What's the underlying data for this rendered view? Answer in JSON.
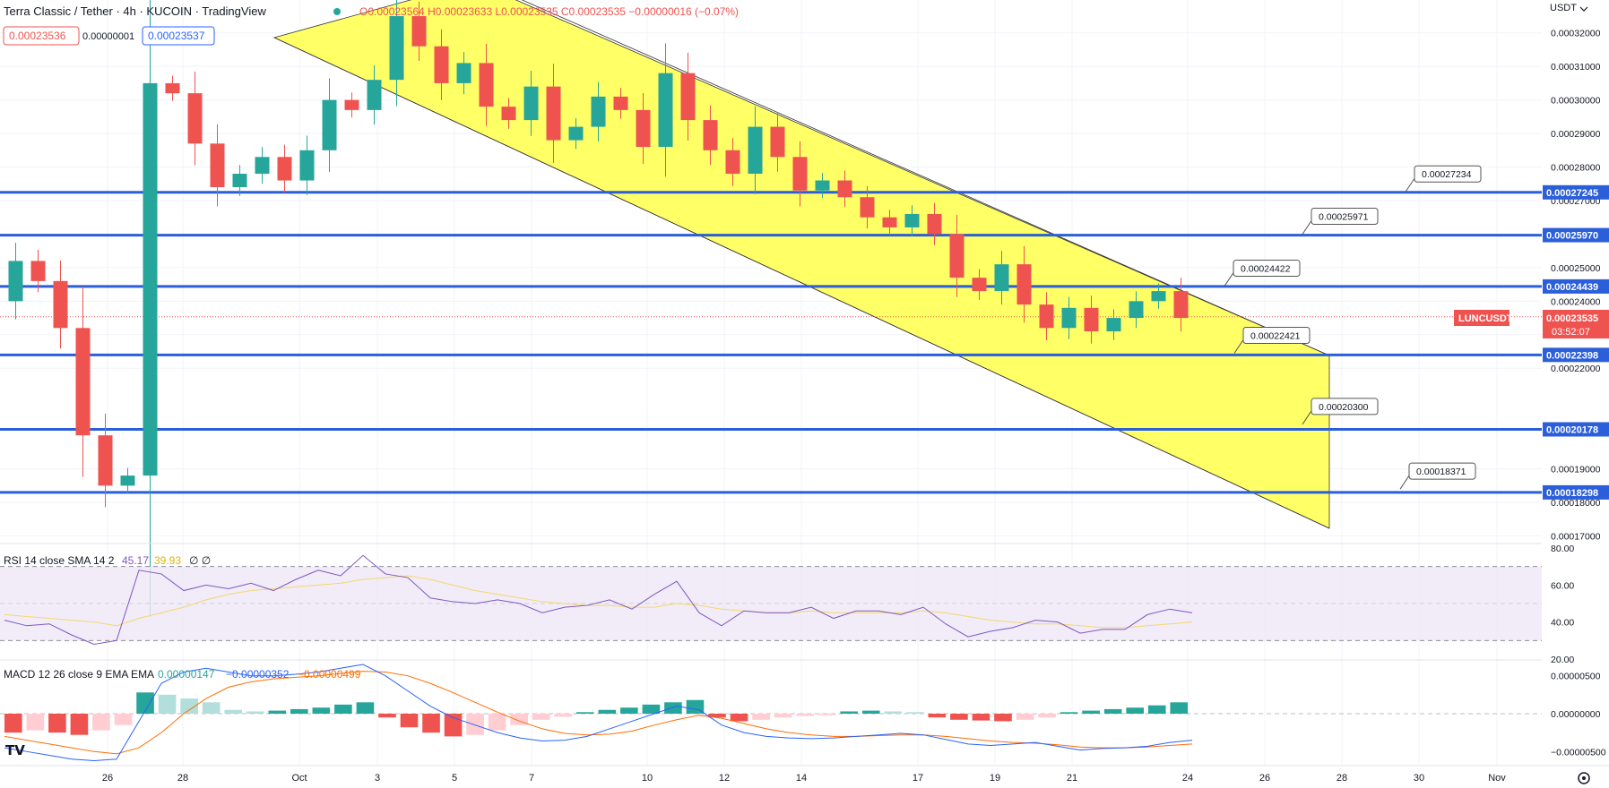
{
  "header": {
    "title": "Terra Classic / Tether · 4h · KUCOIN · TradingView",
    "ohlc": "O0.00023564 H0.00023633 L0.00023535 C0.00023535 −0.00000016 (−0.07%)",
    "bid": "0.00023536",
    "spread": "0.00000001",
    "ask": "0.00023537",
    "currency": "USDT"
  },
  "price_badge": {
    "symbol": "LUNCUSDT",
    "price": "0.00023535",
    "countdown": "03:52:07"
  },
  "indicators": {
    "rsi": {
      "label": "RSI 14 close SMA 14 2",
      "value": "45.17",
      "sma": "39.93",
      "extra": "∅ ∅"
    },
    "macd": {
      "label": "MACD 12 26 close 9 EMA EMA",
      "hist": "0.00000147",
      "macd": "−0.00000352",
      "signal": "−0.00000499"
    }
  },
  "colors": {
    "up": "#26a69a",
    "down": "#ef5350",
    "level": "#2b5fd9",
    "channel": "#ffff66",
    "rsi": "#7e57c2",
    "rsi_sma": "#f5d76e",
    "macd": "#2962ff",
    "signal": "#ff6d00"
  },
  "chart_data": {
    "type": "candlestick",
    "price_axis_labels": [
      "0.00032000",
      "0.00031000",
      "0.00030000",
      "0.00029000",
      "0.00028000",
      "0.00027000",
      "0.00025000",
      "0.00024000",
      "0.00023000",
      "0.00022000",
      "0.00019000",
      "0.00018000",
      "0.00017000"
    ],
    "price_ylim": [
      0.000168,
      0.000325
    ],
    "x_ticks": [
      "26",
      "28",
      "Oct",
      "3",
      "5",
      "7",
      "10",
      "12",
      "14",
      "17",
      "19",
      "21",
      "24",
      "26",
      "28",
      "30",
      "Nov"
    ],
    "horizontal_levels": [
      "0.00027245",
      "0.00025970",
      "0.00024439",
      "0.00022398",
      "0.00020178",
      "0.00018298"
    ],
    "callouts": [
      "0.00027234",
      "0.00025971",
      "0.00024422",
      "0.00022421",
      "0.00020300",
      "0.00018371"
    ],
    "close_path": [
      0.00024,
      0.000252,
      0.000246,
      0.000232,
      0.0002,
      0.000185,
      0.000188,
      0.000305,
      0.000302,
      0.000287,
      0.000274,
      0.000278,
      0.000283,
      0.000276,
      0.000285,
      0.0003,
      0.000297,
      0.000306,
      0.000325,
      0.000316,
      0.000305,
      0.000311,
      0.000298,
      0.000294,
      0.000304,
      0.000288,
      0.000292,
      0.000301,
      0.000297,
      0.000286,
      0.000308,
      0.000294,
      0.000285,
      0.000278,
      0.000292,
      0.000283,
      0.000273,
      0.000276,
      0.000271,
      0.000265,
      0.000262,
      0.000266,
      0.00026,
      0.000247,
      0.000243,
      0.000251,
      0.000239,
      0.000232,
      0.000238,
      0.000231,
      0.000235,
      0.00024,
      0.000243,
      0.000235
    ],
    "rsi_axis_labels": [
      "80.00",
      "60.00",
      "40.00",
      "20.00"
    ],
    "rsi_ylim": [
      20,
      80
    ],
    "rsi_values": [
      41,
      38,
      39,
      33,
      28,
      30,
      68,
      66,
      57,
      60,
      58,
      61,
      57,
      63,
      68,
      65,
      76,
      66,
      64,
      53,
      51,
      50,
      52,
      50,
      45,
      48,
      49,
      52,
      47,
      55,
      62,
      45,
      38,
      46,
      45,
      45,
      48,
      42,
      46,
      46,
      44,
      48,
      39,
      32,
      35,
      37,
      41,
      40,
      34,
      36,
      36,
      44,
      47,
      45
    ],
    "rsi_sma_values": [
      44,
      43,
      42,
      41,
      40,
      38,
      42,
      45,
      48,
      52,
      55,
      57,
      58,
      59,
      60,
      61,
      63,
      64,
      65,
      63,
      60,
      57,
      55,
      53,
      51,
      50,
      49,
      49,
      48,
      48,
      50,
      49,
      47,
      46,
      45,
      45,
      46,
      45,
      45,
      45,
      45,
      46,
      45,
      43,
      41,
      40,
      39,
      39,
      38,
      37,
      37,
      38,
      39,
      40
    ],
    "macd_axis_labels": [
      "0.00000500",
      "0.00000000",
      "−0.00000500"
    ],
    "macd_ylim": [
      -6.5e-06,
      6.5e-06
    ],
    "macd_hist": [
      -2.5,
      -2.2,
      -2.5,
      -2.8,
      -2.2,
      -1.5,
      2.8,
      2.5,
      2.0,
      1.5,
      0.5,
      0.3,
      0.4,
      0.6,
      0.8,
      1.2,
      1.5,
      -0.5,
      -1.8,
      -2.5,
      -3.0,
      -2.8,
      -2.2,
      -1.5,
      -0.8,
      -0.4,
      0.2,
      0.5,
      0.8,
      1.2,
      1.5,
      1.8,
      -0.5,
      -1.0,
      -0.8,
      -0.5,
      -0.3,
      -0.2,
      0.3,
      0.4,
      0.3,
      0.2,
      -0.5,
      -0.8,
      -0.9,
      -1.0,
      -0.8,
      -0.5,
      0.2,
      0.4,
      0.6,
      0.8,
      1.1,
      1.5
    ],
    "macd_line": [
      -4.5,
      -5.0,
      -5.5,
      -6.0,
      -6.2,
      -6.0,
      -1.0,
      4.0,
      5.5,
      6.0,
      5.5,
      5.0,
      5.0,
      5.2,
      5.5,
      6.0,
      6.5,
      5.0,
      3.0,
      1.0,
      -0.5,
      -1.5,
      -2.5,
      -3.2,
      -3.6,
      -3.5,
      -3.0,
      -2.0,
      -1.0,
      0.0,
      1.0,
      0.5,
      -1.5,
      -2.5,
      -3.0,
      -3.2,
      -3.3,
      -3.2,
      -3.0,
      -2.8,
      -2.6,
      -2.8,
      -3.4,
      -4.0,
      -4.2,
      -4.0,
      -3.8,
      -4.3,
      -4.8,
      -4.6,
      -4.5,
      -4.3,
      -3.8,
      -3.5
    ],
    "macd_signal": [
      -3.0,
      -3.5,
      -4.0,
      -4.5,
      -5.0,
      -5.3,
      -4.5,
      -2.5,
      0.0,
      2.0,
      3.5,
      4.2,
      4.6,
      4.8,
      5.0,
      5.3,
      5.6,
      5.5,
      5.0,
      4.0,
      2.8,
      1.5,
      0.2,
      -1.0,
      -2.0,
      -2.6,
      -2.8,
      -2.7,
      -2.3,
      -1.5,
      -0.8,
      -0.2,
      -0.6,
      -1.3,
      -2.0,
      -2.5,
      -2.8,
      -3.0,
      -3.0,
      -2.9,
      -2.8,
      -2.8,
      -3.0,
      -3.3,
      -3.6,
      -3.8,
      -3.9,
      -4.1,
      -4.4,
      -4.5,
      -4.5,
      -4.4,
      -4.2,
      -4.0
    ]
  }
}
